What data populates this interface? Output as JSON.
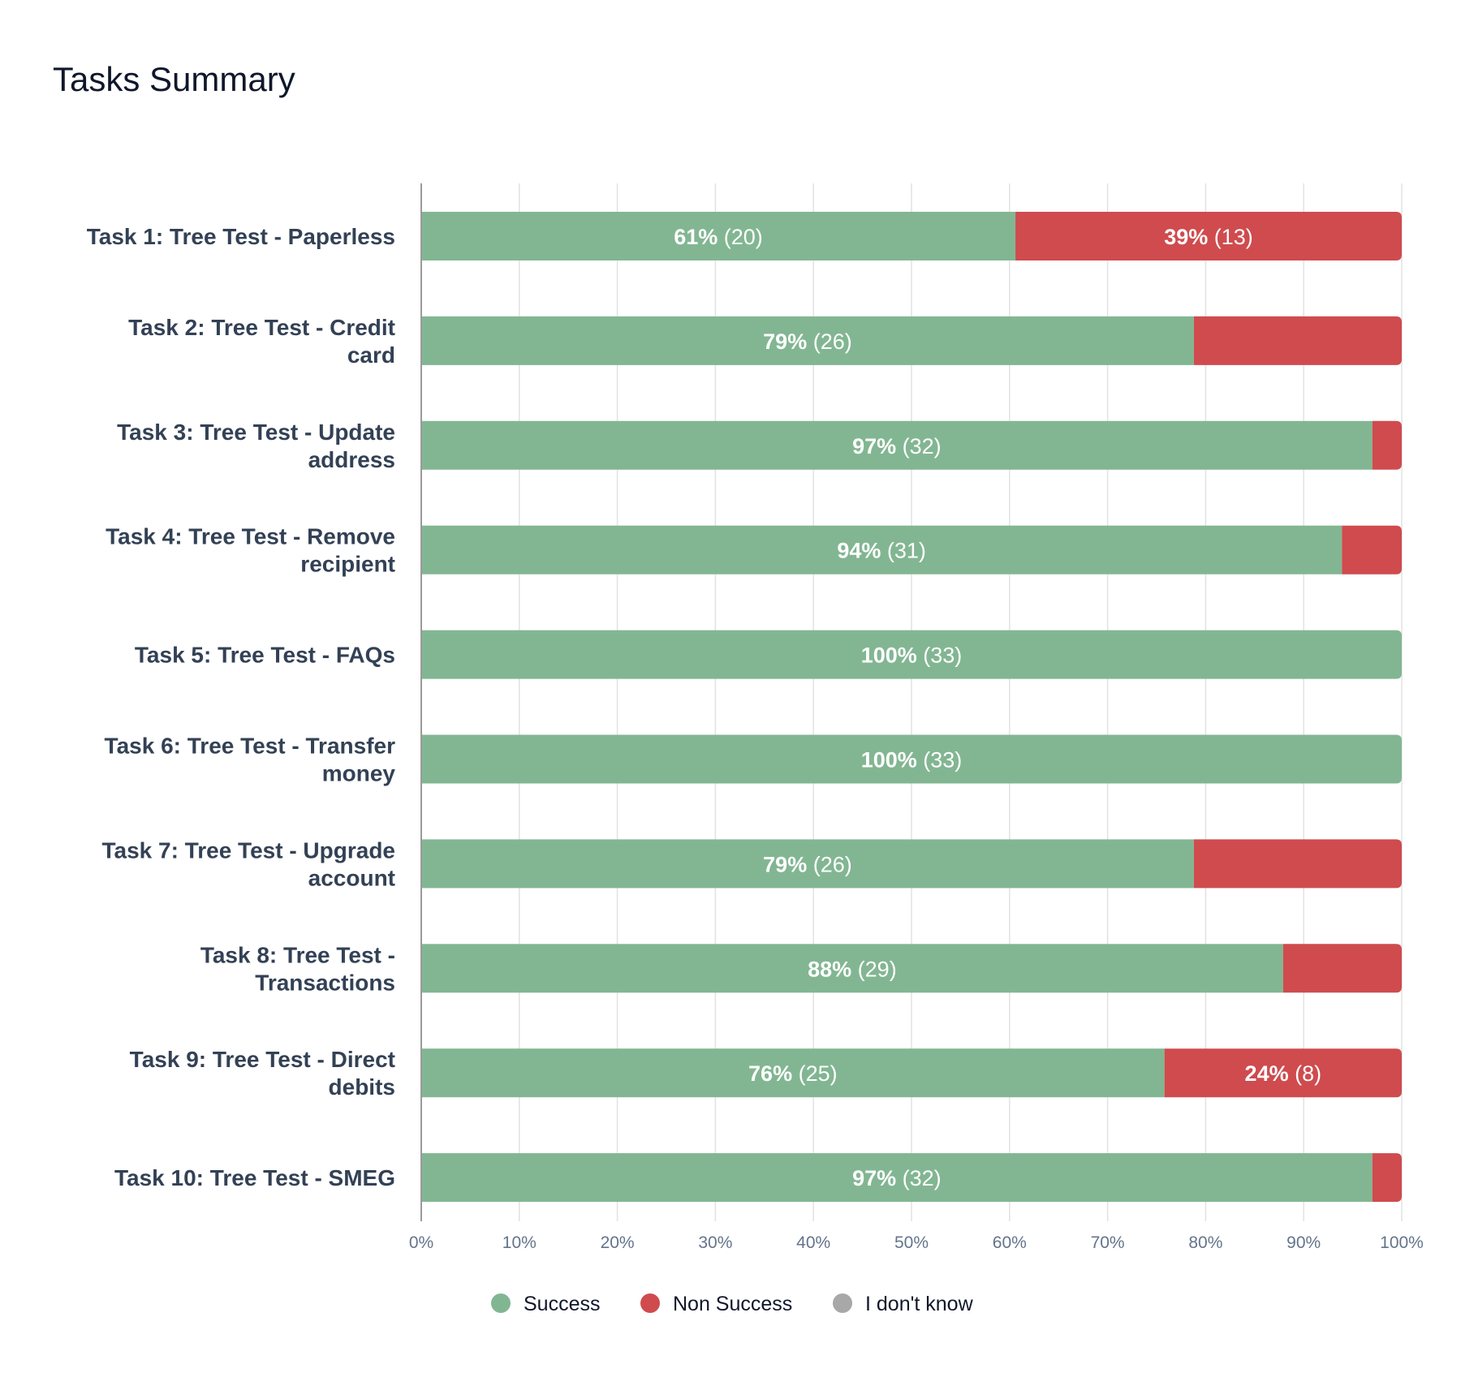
{
  "title": "Tasks Summary",
  "colors": {
    "success": "#82b692",
    "non_success": "#cf4b4e",
    "dont_know": "#a8a8a8",
    "grid": "#e2e2e2",
    "axis": "#9a9a9a"
  },
  "chart_data": {
    "type": "bar",
    "orientation": "horizontal",
    "stacked": true,
    "title": "Tasks Summary",
    "categories": [
      [
        "Task 1: Tree Test - Paperless"
      ],
      [
        "Task 2: Tree Test - Credit",
        "card"
      ],
      [
        "Task 3: Tree Test - Update",
        "address"
      ],
      [
        "Task 4: Tree Test - Remove",
        "recipient"
      ],
      [
        "Task 5: Tree Test - FAQs"
      ],
      [
        "Task 6: Tree Test - Transfer",
        "money"
      ],
      [
        "Task 7: Tree Test - Upgrade",
        "account"
      ],
      [
        "Task 8: Tree Test -",
        "Transactions"
      ],
      [
        "Task 9: Tree Test - Direct",
        "debits"
      ],
      [
        "Task 10: Tree Test - SMEG"
      ]
    ],
    "series": [
      {
        "name": "Success",
        "color": "#82b692",
        "values": [
          60.6,
          78.8,
          97,
          93.9,
          100,
          100,
          78.8,
          87.9,
          75.8,
          97
        ],
        "counts": [
          20,
          26,
          32,
          31,
          33,
          33,
          26,
          29,
          25,
          32
        ],
        "labels": [
          [
            "61%",
            " (20)"
          ],
          [
            "79%",
            " (26)"
          ],
          [
            "97%",
            " (32)"
          ],
          [
            "94%",
            " (31)"
          ],
          [
            "100%",
            " (33)"
          ],
          [
            "100%",
            " (33)"
          ],
          [
            "79%",
            " (26)"
          ],
          [
            "88%",
            " (29)"
          ],
          [
            "76%",
            " (25)"
          ],
          [
            "97%",
            " (32)"
          ]
        ]
      },
      {
        "name": "Non Success",
        "color": "#cf4b4e",
        "values": [
          39.4,
          21.2,
          3,
          6.1,
          0,
          0,
          21.2,
          12.1,
          24.2,
          3
        ],
        "counts": [
          13,
          7,
          1,
          2,
          0,
          0,
          7,
          4,
          8,
          1
        ],
        "labels": [
          [
            "39%",
            " (13)"
          ],
          null,
          null,
          null,
          null,
          null,
          null,
          null,
          [
            "24%",
            " (8)"
          ],
          null
        ]
      },
      {
        "name": "I don't know",
        "color": "#a8a8a8",
        "values": [
          0,
          0,
          0,
          0,
          0,
          0,
          0,
          0,
          0,
          0
        ],
        "labels": [
          null,
          null,
          null,
          null,
          null,
          null,
          null,
          null,
          null,
          null
        ]
      }
    ],
    "xlim": [
      0,
      100
    ],
    "xticks": [
      "0%",
      "10%",
      "20%",
      "30%",
      "40%",
      "50%",
      "60%",
      "70%",
      "80%",
      "90%",
      "100%"
    ],
    "grid": true,
    "legend": {
      "position": "bottom-center",
      "items": [
        "Success",
        "Non Success",
        "I don't know"
      ]
    }
  }
}
